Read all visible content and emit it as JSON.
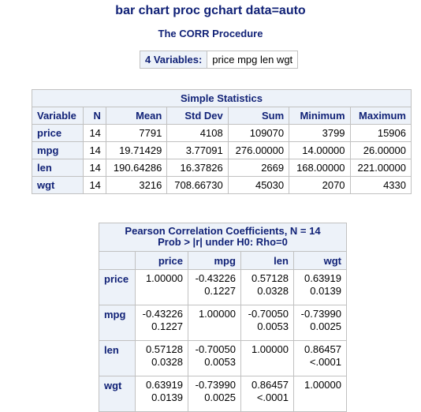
{
  "title": "bar chart proc gchart data=auto",
  "procedure": "The CORR Procedure",
  "variables_info": {
    "label": "4 Variables:",
    "list": "price mpg len wgt"
  },
  "simple_statistics": {
    "caption": "Simple Statistics",
    "headers": [
      "Variable",
      "N",
      "Mean",
      "Std Dev",
      "Sum",
      "Minimum",
      "Maximum"
    ],
    "rows": [
      [
        "price",
        "14",
        "7791",
        "4108",
        "109070",
        "3799",
        "15906"
      ],
      [
        "mpg",
        "14",
        "19.71429",
        "3.77091",
        "276.00000",
        "14.00000",
        "26.00000"
      ],
      [
        "len",
        "14",
        "190.64286",
        "16.37826",
        "2669",
        "168.00000",
        "221.00000"
      ],
      [
        "wgt",
        "14",
        "3216",
        "708.66730",
        "45030",
        "2070",
        "4330"
      ]
    ]
  },
  "correlations": {
    "caption_line1": "Pearson Correlation Coefficients, N = 14",
    "caption_line2": "Prob > |r| under H0: Rho=0",
    "columns": [
      "price",
      "mpg",
      "len",
      "wgt"
    ],
    "rows": [
      {
        "name": "price",
        "cells": [
          [
            "1.00000",
            ""
          ],
          [
            "-0.43226",
            "0.1227"
          ],
          [
            "0.57128",
            "0.0328"
          ],
          [
            "0.63919",
            "0.0139"
          ]
        ]
      },
      {
        "name": "mpg",
        "cells": [
          [
            "-0.43226",
            "0.1227"
          ],
          [
            "1.00000",
            ""
          ],
          [
            "-0.70050",
            "0.0053"
          ],
          [
            "-0.73990",
            "0.0025"
          ]
        ]
      },
      {
        "name": "len",
        "cells": [
          [
            "0.57128",
            "0.0328"
          ],
          [
            "-0.70050",
            "0.0053"
          ],
          [
            "1.00000",
            ""
          ],
          [
            "0.86457",
            "<.0001"
          ]
        ]
      },
      {
        "name": "wgt",
        "cells": [
          [
            "0.63919",
            "0.0139"
          ],
          [
            "-0.73990",
            "0.0025"
          ],
          [
            "0.86457",
            "<.0001"
          ],
          [
            "1.00000",
            ""
          ]
        ]
      }
    ]
  },
  "colors": {
    "title_text": "#112277",
    "header_bg": "#edf2f9",
    "border": "#c1c1c1"
  }
}
